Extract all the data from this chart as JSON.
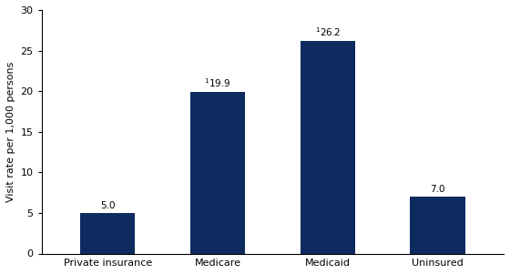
{
  "categories": [
    "Private insurance",
    "Medicare",
    "Medicaid",
    "Uninsured"
  ],
  "values": [
    5.0,
    19.9,
    26.2,
    7.0
  ],
  "bar_labels": [
    "5.0",
    "19.9",
    "26.2",
    "7.0"
  ],
  "has_superscript": [
    false,
    true,
    true,
    false
  ],
  "bar_color": "#0d2b5e",
  "ylabel": "Visit rate per 1,000 persons",
  "ylim": [
    0,
    30
  ],
  "yticks": [
    0,
    5,
    10,
    15,
    20,
    25,
    30
  ],
  "label_fontsize": 7.5,
  "tick_fontsize": 8,
  "ylabel_fontsize": 8,
  "bar_width": 0.5
}
